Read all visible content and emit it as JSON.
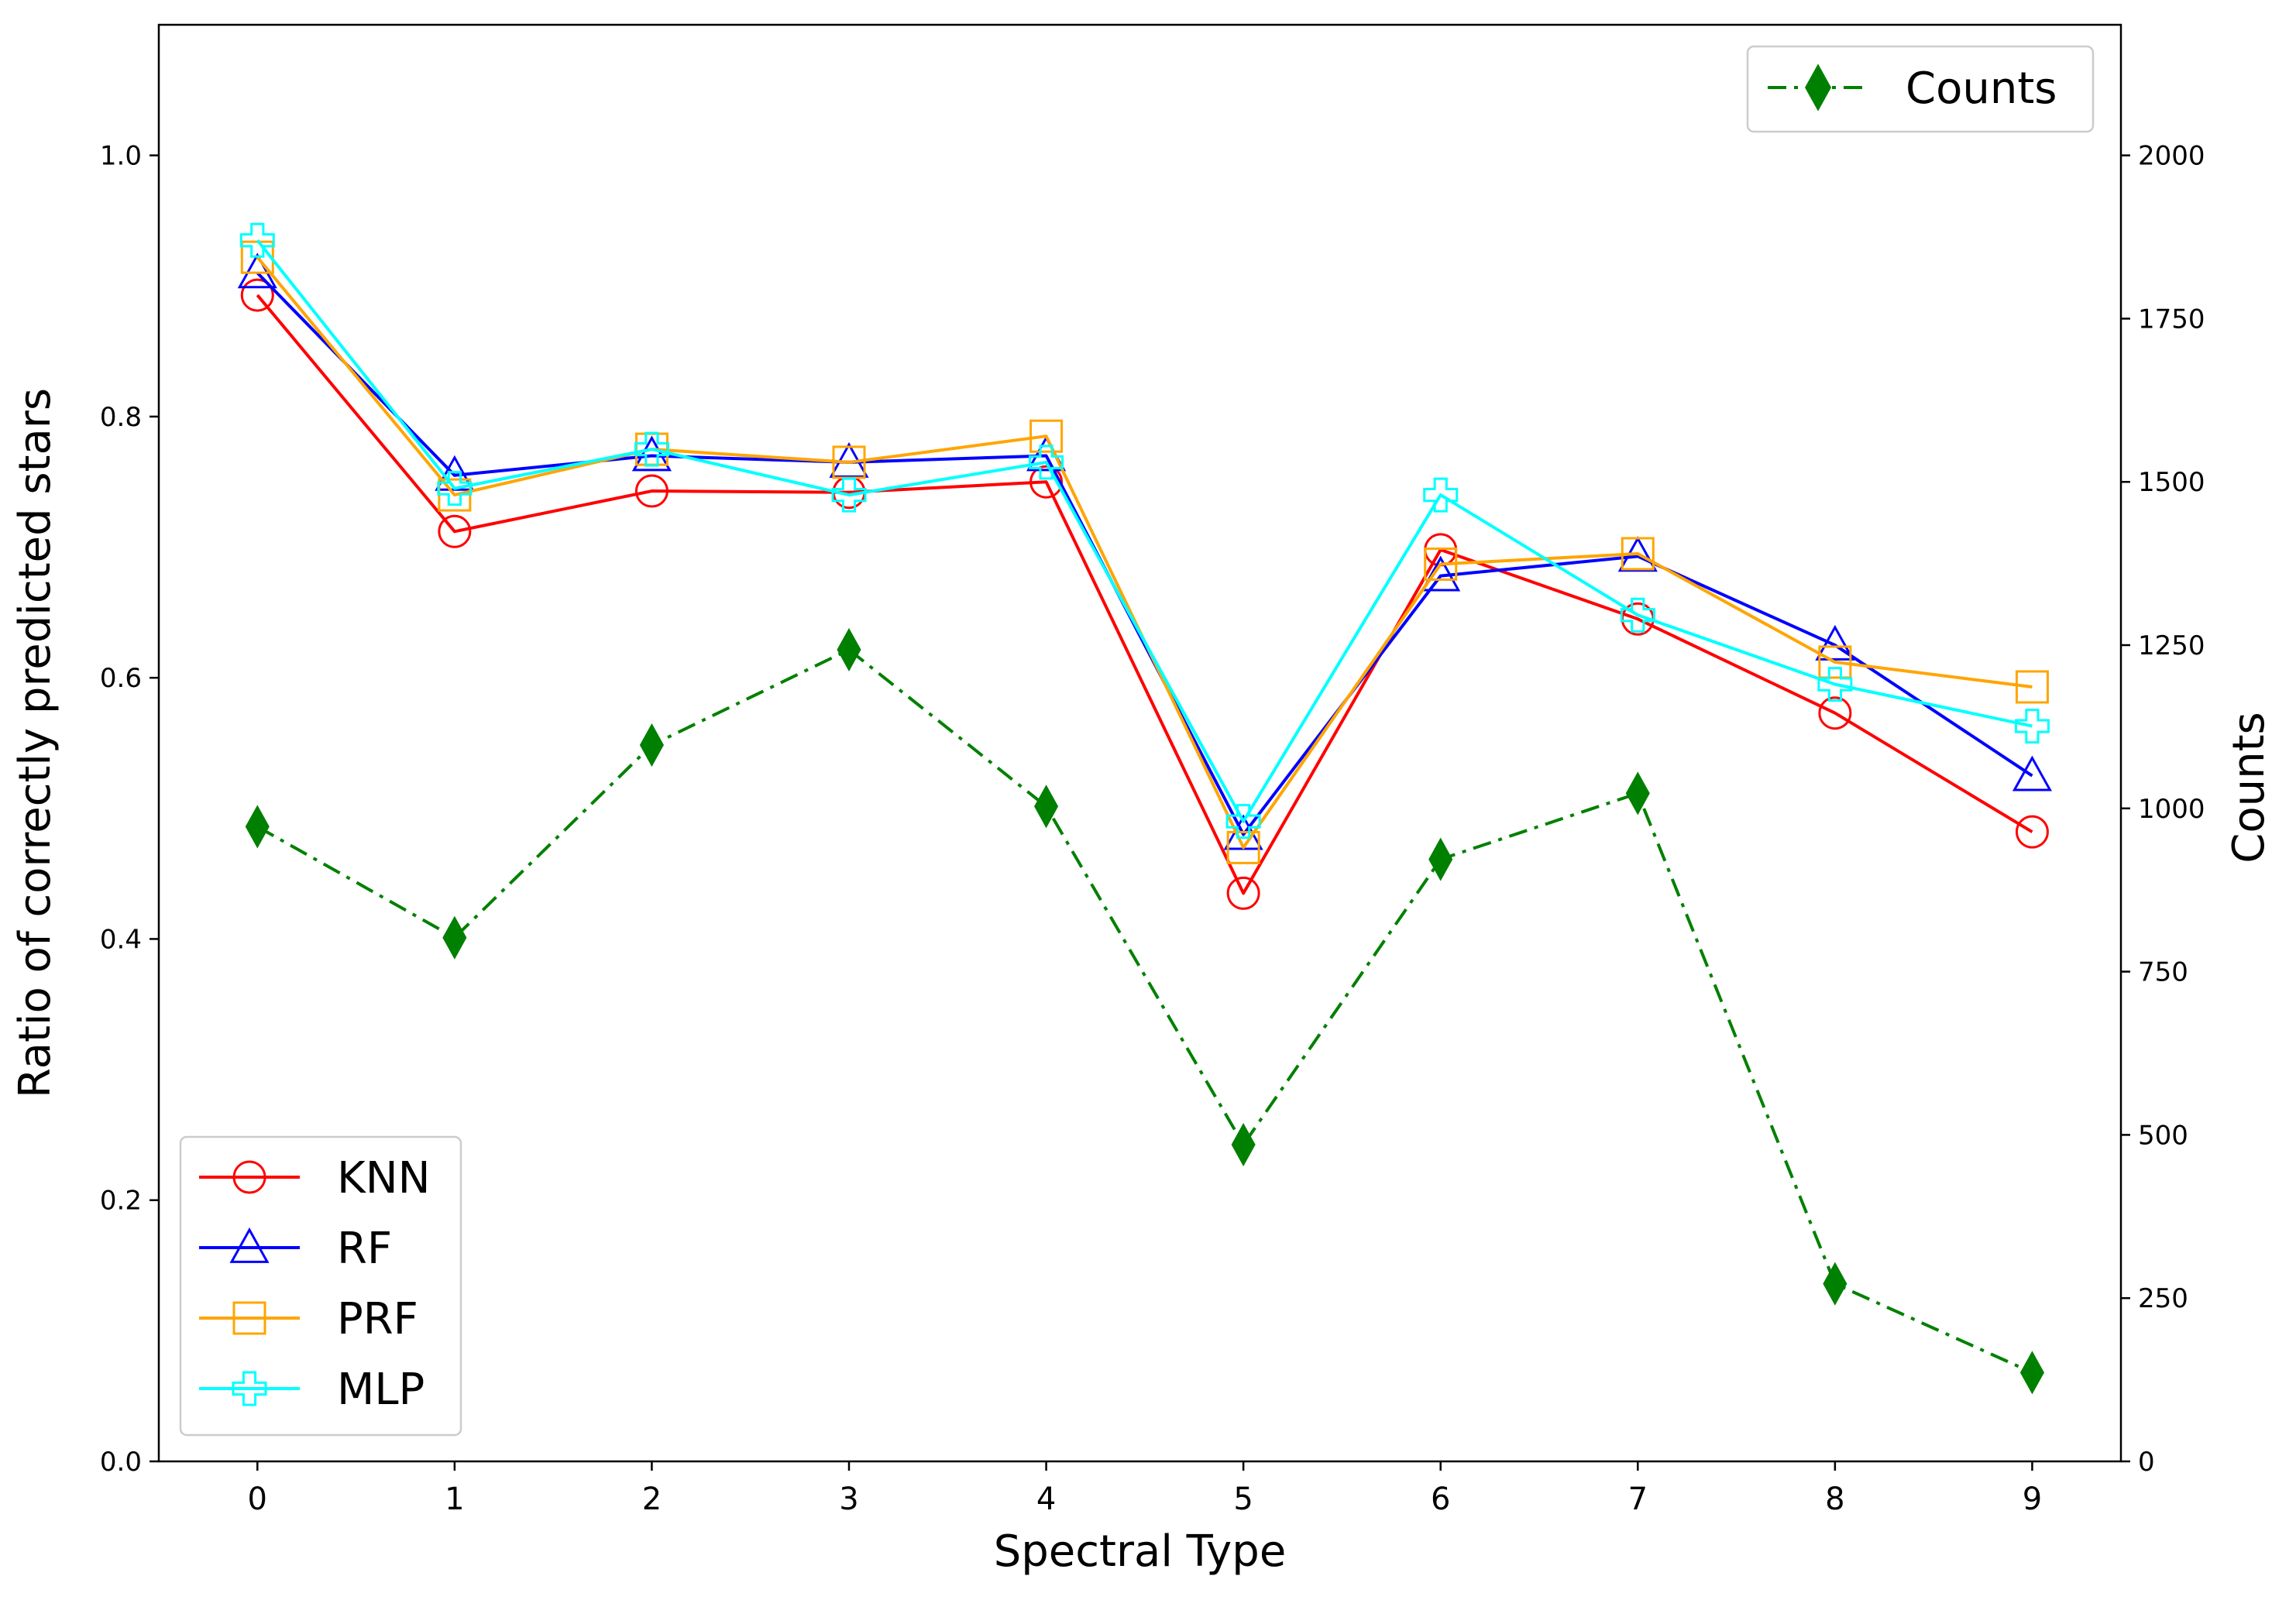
{
  "chart_data": {
    "type": "line",
    "xlabel": "Spectral Type",
    "ylabel": "Ratio of correctly predicted stars",
    "y2label": "Counts",
    "categories": [
      0,
      1,
      2,
      3,
      4,
      5,
      6,
      7,
      8,
      9
    ],
    "x_ticks": [
      "0",
      "1",
      "2",
      "3",
      "4",
      "5",
      "6",
      "7",
      "8",
      "9"
    ],
    "y_ticks": [
      "0.0",
      "0.2",
      "0.4",
      "0.6",
      "0.8",
      "1.0"
    ],
    "y_tick_values": [
      0,
      0.2,
      0.4,
      0.6,
      0.8,
      1.0
    ],
    "y2_ticks": [
      "0",
      "250",
      "500",
      "750",
      "1000",
      "1250",
      "1500",
      "1750",
      "2000"
    ],
    "y2_tick_values": [
      0,
      250,
      500,
      750,
      1000,
      1250,
      1500,
      1750,
      2000
    ],
    "xlim": [
      -0.5,
      9.45
    ],
    "ylim": [
      0,
      1.1
    ],
    "y2lim": [
      0,
      2200
    ],
    "grid": false,
    "series": [
      {
        "name": "KNN",
        "color": "#ff0000",
        "marker": "circle",
        "axis": "left",
        "line_style": "solid",
        "values": [
          0.893,
          0.712,
          0.743,
          0.742,
          0.75,
          0.435,
          0.698,
          0.645,
          0.573,
          0.482
        ]
      },
      {
        "name": "RF",
        "color": "#0000ff",
        "marker": "triangle",
        "axis": "left",
        "line_style": "solid",
        "values": [
          0.91,
          0.755,
          0.77,
          0.765,
          0.77,
          0.48,
          0.678,
          0.693,
          0.625,
          0.525
        ]
      },
      {
        "name": "PRF",
        "color": "#ffa500",
        "marker": "square",
        "axis": "left",
        "line_style": "solid",
        "values": [
          0.922,
          0.74,
          0.775,
          0.765,
          0.785,
          0.47,
          0.687,
          0.695,
          0.612,
          0.593
        ]
      },
      {
        "name": "MLP",
        "color": "#00ffff",
        "marker": "plus",
        "axis": "left",
        "line_style": "solid",
        "values": [
          0.935,
          0.745,
          0.775,
          0.74,
          0.765,
          0.49,
          0.74,
          0.648,
          0.595,
          0.563
        ]
      },
      {
        "name": "Counts",
        "color": "#008000",
        "marker": "diamond",
        "axis": "right",
        "line_style": "dashdot",
        "values": [
          972,
          802,
          1097,
          1243,
          1003,
          485,
          922,
          1023,
          272,
          136
        ]
      }
    ],
    "legend_left": {
      "placement": "lower-left",
      "entries": [
        "KNN",
        "RF",
        "PRF",
        "MLP"
      ]
    },
    "legend_right": {
      "placement": "upper-right",
      "entries": [
        "Counts"
      ]
    }
  }
}
